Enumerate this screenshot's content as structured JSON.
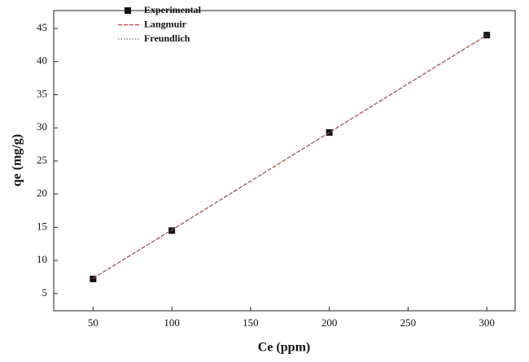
{
  "chart_data": {
    "type": "scatter",
    "x_label": "Ce (ppm)",
    "y_label": "qe (mg/g)",
    "x": [
      50,
      100,
      200,
      300
    ],
    "series": [
      {
        "name": "Experimental",
        "color": "#111111",
        "style": "marker",
        "values": [
          7.2,
          14.5,
          29.3,
          44.0
        ]
      },
      {
        "name": "Langmuir",
        "color": "#e03030",
        "style": "dash",
        "values": [
          7.3,
          14.6,
          29.3,
          44.0
        ]
      },
      {
        "name": "Freundlich",
        "color": "#707070",
        "style": "dot",
        "values": [
          7.3,
          14.6,
          29.3,
          44.0
        ]
      }
    ],
    "xlim": [
      25,
      318
    ],
    "xticks": [
      50,
      100,
      150,
      200,
      250,
      300
    ],
    "ylim": [
      2.4,
      47.7
    ],
    "yticks": [
      5,
      10,
      15,
      20,
      25,
      30,
      35,
      40,
      45
    ],
    "legend": "upper left"
  }
}
